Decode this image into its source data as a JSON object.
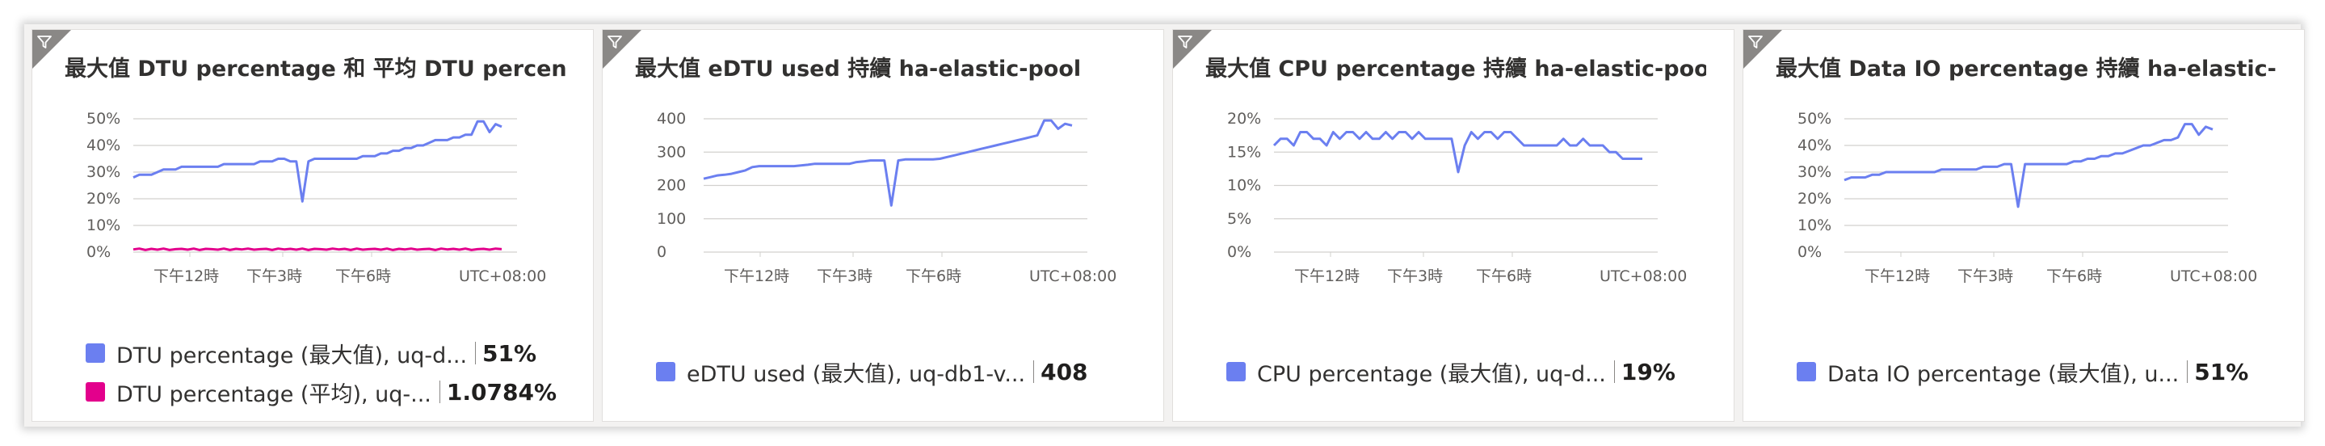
{
  "colors": {
    "series_blue": "#6b7ff0",
    "series_pink": "#e3008c",
    "grid": "#d2d0ce"
  },
  "tiles": [
    {
      "title": "最大值 DTU percentage 和 平均 DTU percen...",
      "filter_icon": "filter-icon",
      "time_ticks": [
        "下午12時",
        "下午3時",
        "下午6時"
      ],
      "timezone": "UTC+08:00",
      "legend": [
        {
          "label": "DTU percentage (最大值), uq-d...",
          "value": "51%",
          "color": "#6b7ff0"
        },
        {
          "label": "DTU percentage (平均), uq-...",
          "value": "1.0784%",
          "color": "#e3008c"
        }
      ]
    },
    {
      "title": "最大值 eDTU used 持續 ha-elastic-pool",
      "filter_icon": "filter-icon",
      "time_ticks": [
        "下午12時",
        "下午3時",
        "下午6時"
      ],
      "timezone": "UTC+08:00",
      "legend": [
        {
          "label": "eDTU used (最大值), uq-db1-v...",
          "value": "408",
          "color": "#6b7ff0"
        }
      ]
    },
    {
      "title": "最大值 CPU percentage 持續 ha-elastic-pool",
      "filter_icon": "filter-icon",
      "time_ticks": [
        "下午12時",
        "下午3時",
        "下午6時"
      ],
      "timezone": "UTC+08:00",
      "legend": [
        {
          "label": "CPU percentage (最大值), uq-d...",
          "value": "19%",
          "color": "#6b7ff0"
        }
      ]
    },
    {
      "title": "最大值 Data IO percentage 持續 ha-elastic-...",
      "filter_icon": "filter-icon",
      "time_ticks": [
        "下午12時",
        "下午3時",
        "下午6時"
      ],
      "timezone": "UTC+08:00",
      "legend": [
        {
          "label": "Data IO percentage (最大值), u...",
          "value": "51%",
          "color": "#6b7ff0"
        }
      ]
    }
  ],
  "chart_data": [
    {
      "type": "line",
      "title": "最大值 DTU percentage 和 平均 DTU percen...",
      "y_ticks": [
        "0%",
        "10%",
        "20%",
        "30%",
        "40%",
        "50%"
      ],
      "ylim": [
        0,
        50
      ],
      "x_ticks": [
        "下午12時",
        "下午3時",
        "下午6時"
      ],
      "grid": true,
      "series": [
        {
          "name": "DTU percentage (最大值), uq-d...",
          "color": "#6b7ff0",
          "values": [
            28,
            29,
            29,
            29,
            30,
            31,
            31,
            31,
            32,
            32,
            32,
            32,
            32,
            32,
            32,
            33,
            33,
            33,
            33,
            33,
            33,
            34,
            34,
            34,
            35,
            35,
            34,
            34,
            19,
            34,
            35,
            35,
            35,
            35,
            35,
            35,
            35,
            35,
            36,
            36,
            36,
            37,
            37,
            38,
            38,
            39,
            39,
            40,
            40,
            41,
            42,
            42,
            42,
            43,
            43,
            44,
            44,
            49,
            49,
            45,
            48,
            47
          ]
        },
        {
          "name": "DTU percentage (平均), uq-...",
          "color": "#e3008c",
          "values": [
            1,
            1.3,
            0.8,
            1.2,
            0.9,
            1.3,
            0.8,
            1.1,
            1.2,
            0.9,
            1.3,
            0.8,
            1.2,
            1.1,
            0.9,
            1.3,
            0.8,
            1.2,
            1,
            1.3,
            0.9,
            1.1,
            1.2,
            0.8,
            1.3,
            1,
            1.2,
            0.9,
            1.3,
            0.8,
            1.2,
            1.1,
            0.9,
            1.3,
            1,
            1.2,
            0.8,
            1.3,
            0.9,
            1.1,
            1.2,
            0.9,
            1.3,
            0.8,
            1.2,
            1,
            1.3,
            0.9,
            1.1,
            1.2,
            0.8,
            1.3,
            1,
            1.2,
            0.9,
            1.3,
            0.8,
            1.1,
            1.2,
            0.9,
            1.3,
            1.1
          ]
        }
      ]
    },
    {
      "type": "line",
      "title": "最大值 eDTU used 持續 ha-elastic-pool",
      "y_ticks": [
        "0",
        "100",
        "200",
        "300",
        "400"
      ],
      "ylim": [
        0,
        400
      ],
      "x_ticks": [
        "下午12時",
        "下午3時",
        "下午6時"
      ],
      "grid": true,
      "series": [
        {
          "name": "eDTU used (最大值), uq-db1-v...",
          "color": "#6b7ff0",
          "values": [
            220,
            225,
            230,
            232,
            235,
            240,
            245,
            255,
            258,
            258,
            258,
            258,
            258,
            258,
            260,
            262,
            265,
            265,
            265,
            265,
            265,
            265,
            270,
            272,
            275,
            275,
            275,
            140,
            275,
            278,
            278,
            278,
            278,
            278,
            280,
            285,
            290,
            295,
            300,
            305,
            310,
            315,
            320,
            325,
            330,
            335,
            340,
            345,
            350,
            395,
            395,
            370,
            385,
            380
          ]
        }
      ]
    },
    {
      "type": "line",
      "title": "最大值 CPU percentage 持續 ha-elastic-pool",
      "y_ticks": [
        "0%",
        "5%",
        "10%",
        "15%",
        "20%"
      ],
      "ylim": [
        0,
        20
      ],
      "x_ticks": [
        "下午12時",
        "下午3時",
        "下午6時"
      ],
      "grid": true,
      "series": [
        {
          "name": "CPU percentage (最大值), uq-d...",
          "color": "#6b7ff0",
          "values": [
            16,
            17,
            17,
            16,
            18,
            18,
            17,
            17,
            16,
            18,
            17,
            18,
            18,
            17,
            18,
            17,
            17,
            18,
            17,
            18,
            18,
            17,
            18,
            17,
            17,
            17,
            17,
            17,
            12,
            16,
            18,
            17,
            18,
            18,
            17,
            18,
            18,
            17,
            16,
            16,
            16,
            16,
            16,
            16,
            17,
            16,
            16,
            17,
            16,
            16,
            16,
            15,
            15,
            14,
            14,
            14,
            14
          ]
        }
      ]
    },
    {
      "type": "line",
      "title": "最大值 Data IO percentage 持續 ha-elastic-...",
      "y_ticks": [
        "0%",
        "10%",
        "20%",
        "30%",
        "40%",
        "50%"
      ],
      "ylim": [
        0,
        50
      ],
      "x_ticks": [
        "下午12時",
        "下午3時",
        "下午6時"
      ],
      "grid": true,
      "series": [
        {
          "name": "Data IO percentage (最大值), u...",
          "color": "#6b7ff0",
          "values": [
            27,
            28,
            28,
            28,
            29,
            29,
            30,
            30,
            30,
            30,
            30,
            30,
            30,
            30,
            31,
            31,
            31,
            31,
            31,
            31,
            32,
            32,
            32,
            33,
            33,
            17,
            33,
            33,
            33,
            33,
            33,
            33,
            33,
            34,
            34,
            35,
            35,
            36,
            36,
            37,
            37,
            38,
            39,
            40,
            40,
            41,
            42,
            42,
            43,
            48,
            48,
            44,
            47,
            46
          ]
        }
      ]
    }
  ]
}
